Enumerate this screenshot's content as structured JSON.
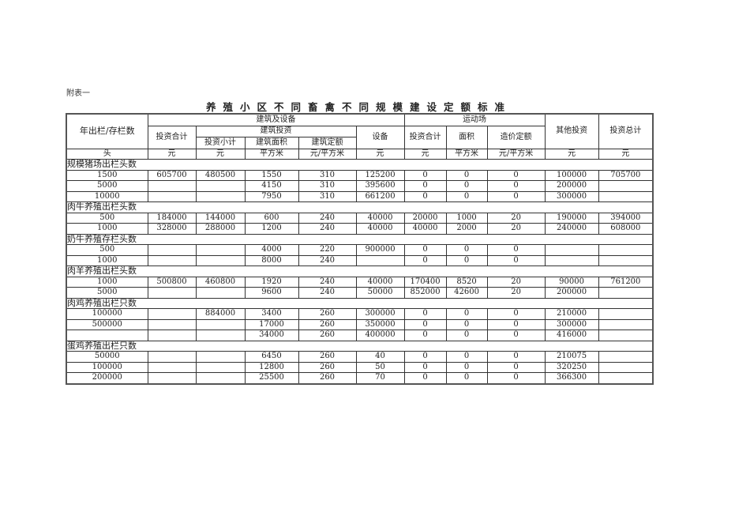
{
  "note": "附表一",
  "title": "养殖小区不同畜禽不同规模建设定额标准",
  "header": {
    "col0": "年出栏/存栏数",
    "building_equipment": "建筑及设备",
    "invest_total": "投资合计",
    "building_invest": "建筑投资",
    "invest_subtotal": "投资小计",
    "building_area": "建筑面积",
    "building_quota": "建筑定额",
    "equipment": "设备",
    "yard": "运动场",
    "yard_invest_total": "投资合计",
    "yard_area": "面积",
    "yard_cost_quota": "造价定额",
    "other_invest": "其他投资",
    "grand_total": "投资总计"
  },
  "units": [
    "头",
    "元",
    "元",
    "平方米",
    "元/平方米",
    "元",
    "元",
    "平方米",
    "元/平方米",
    "元",
    "元"
  ],
  "groups": [
    {
      "label": "规模猪场出栏头数",
      "rows": [
        [
          "1500",
          "605700",
          "480500",
          "1550",
          "310",
          "125200",
          "0",
          "0",
          "0",
          "100000",
          "705700"
        ],
        [
          "5000",
          "",
          "",
          "4150",
          "310",
          "395600",
          "0",
          "0",
          "0",
          "200000",
          ""
        ],
        [
          "10000",
          "",
          "",
          "7950",
          "310",
          "661200",
          "0",
          "0",
          "0",
          "300000",
          ""
        ]
      ]
    },
    {
      "label": "肉牛养殖出栏头数",
      "rows": [
        [
          "500",
          "184000",
          "144000",
          "600",
          "240",
          "40000",
          "20000",
          "1000",
          "20",
          "190000",
          "394000"
        ],
        [
          "1000",
          "328000",
          "288000",
          "1200",
          "240",
          "40000",
          "40000",
          "2000",
          "20",
          "240000",
          "608000"
        ]
      ]
    },
    {
      "label": "奶牛养殖存栏头数",
      "rows": [
        [
          "500",
          "",
          "",
          "4000",
          "220",
          "900000",
          "0",
          "0",
          "0",
          "",
          ""
        ],
        [
          "1000",
          "",
          "",
          "8000",
          "240",
          "",
          "0",
          "0",
          "0",
          "",
          ""
        ]
      ]
    },
    {
      "label": "肉羊养殖出栏头数",
      "rows": [
        [
          "1000",
          "500800",
          "460800",
          "1920",
          "240",
          "40000",
          "170400",
          "8520",
          "20",
          "90000",
          "761200"
        ],
        [
          "5000",
          "",
          "",
          "9600",
          "240",
          "50000",
          "852000",
          "42600",
          "20",
          "200000",
          ""
        ]
      ]
    },
    {
      "label": "肉鸡养殖出栏只数",
      "rows": [
        [
          "100000",
          "",
          "884000",
          "3400",
          "260",
          "300000",
          "0",
          "0",
          "0",
          "210000",
          ""
        ],
        [
          "500000",
          "",
          "",
          "17000",
          "260",
          "350000",
          "0",
          "0",
          "0",
          "300000",
          ""
        ],
        [
          "",
          "",
          "",
          "34000",
          "260",
          "400000",
          "0",
          "0",
          "0",
          "416000",
          ""
        ]
      ]
    },
    {
      "label": "蛋鸡养殖出栏只数",
      "rows": [
        [
          "50000",
          "",
          "",
          "6450",
          "260",
          "40",
          "0",
          "0",
          "0",
          "210075",
          ""
        ],
        [
          "100000",
          "",
          "",
          "12800",
          "260",
          "50",
          "0",
          "0",
          "0",
          "320250",
          ""
        ],
        [
          "200000",
          "",
          "",
          "25500",
          "260",
          "70",
          "0",
          "0",
          "0",
          "366300",
          ""
        ]
      ]
    }
  ]
}
